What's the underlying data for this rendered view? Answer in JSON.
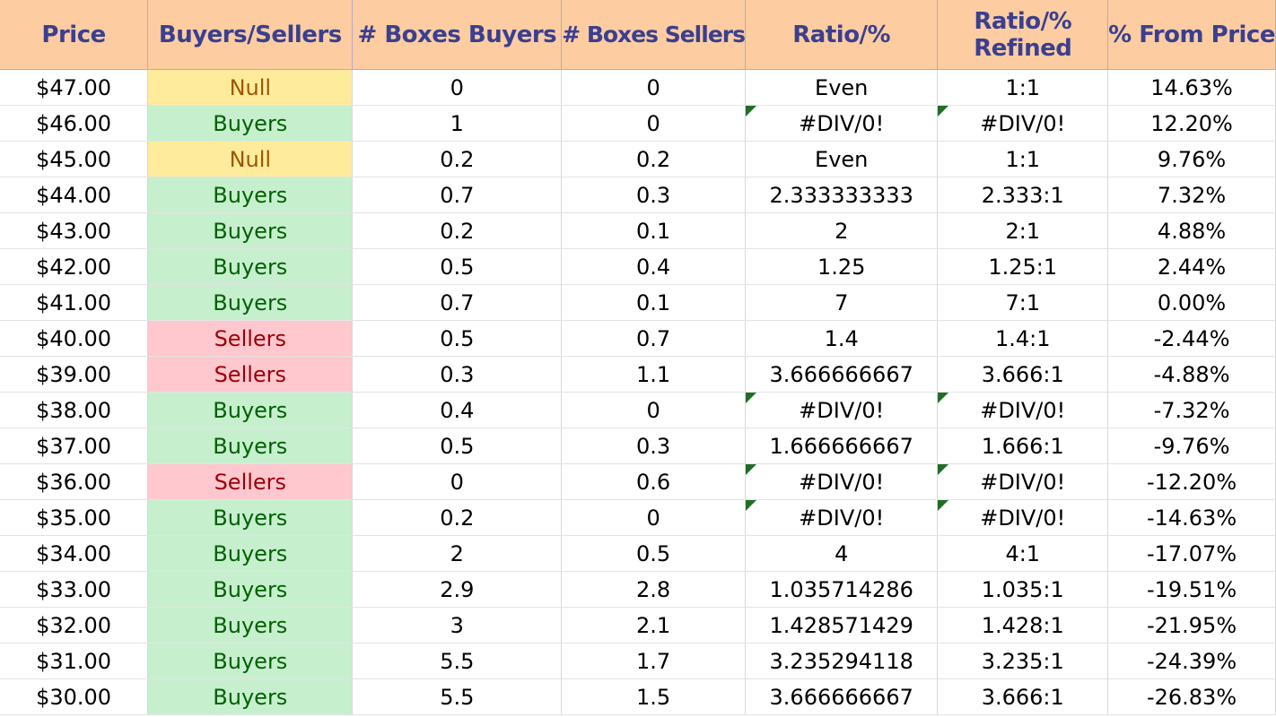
{
  "headers": [
    "Price",
    "Buyers/Sellers",
    "# Boxes Buyers",
    "# Boxes Sellers",
    "Ratio/%",
    "Ratio/% Refined",
    "% From Price"
  ],
  "header_refined_line1": "Ratio/%",
  "header_refined_line2": "Refined",
  "status_colors": {
    "Buyers": {
      "bg": "#c6efce",
      "fg": "#006100"
    },
    "Sellers": {
      "bg": "#ffc7ce",
      "fg": "#9c0006"
    },
    "Null": {
      "bg": "#ffeb9c",
      "fg": "#9c5700"
    }
  },
  "header_colors": {
    "bg": "#fdcca1",
    "fg": "#3a3f8f"
  },
  "rows": [
    {
      "price": "$47.00",
      "status": "Null",
      "buyers": "0",
      "sellers": "0",
      "ratio": "Even",
      "refined": "1:1",
      "from_price": "14.63%",
      "error_flag": false
    },
    {
      "price": "$46.00",
      "status": "Buyers",
      "buyers": "1",
      "sellers": "0",
      "ratio": "#DIV/0!",
      "refined": "#DIV/0!",
      "from_price": "12.20%",
      "error_flag": true
    },
    {
      "price": "$45.00",
      "status": "Null",
      "buyers": "0.2",
      "sellers": "0.2",
      "ratio": "Even",
      "refined": "1:1",
      "from_price": "9.76%",
      "error_flag": false
    },
    {
      "price": "$44.00",
      "status": "Buyers",
      "buyers": "0.7",
      "sellers": "0.3",
      "ratio": "2.333333333",
      "refined": "2.333:1",
      "from_price": "7.32%",
      "error_flag": false
    },
    {
      "price": "$43.00",
      "status": "Buyers",
      "buyers": "0.2",
      "sellers": "0.1",
      "ratio": "2",
      "refined": "2:1",
      "from_price": "4.88%",
      "error_flag": false
    },
    {
      "price": "$42.00",
      "status": "Buyers",
      "buyers": "0.5",
      "sellers": "0.4",
      "ratio": "1.25",
      "refined": "1.25:1",
      "from_price": "2.44%",
      "error_flag": false
    },
    {
      "price": "$41.00",
      "status": "Buyers",
      "buyers": "0.7",
      "sellers": "0.1",
      "ratio": "7",
      "refined": "7:1",
      "from_price": "0.00%",
      "error_flag": false
    },
    {
      "price": "$40.00",
      "status": "Sellers",
      "buyers": "0.5",
      "sellers": "0.7",
      "ratio": "1.4",
      "refined": "1.4:1",
      "from_price": "-2.44%",
      "error_flag": false
    },
    {
      "price": "$39.00",
      "status": "Sellers",
      "buyers": "0.3",
      "sellers": "1.1",
      "ratio": "3.666666667",
      "refined": "3.666:1",
      "from_price": "-4.88%",
      "error_flag": false
    },
    {
      "price": "$38.00",
      "status": "Buyers",
      "buyers": "0.4",
      "sellers": "0",
      "ratio": "#DIV/0!",
      "refined": "#DIV/0!",
      "from_price": "-7.32%",
      "error_flag": true
    },
    {
      "price": "$37.00",
      "status": "Buyers",
      "buyers": "0.5",
      "sellers": "0.3",
      "ratio": "1.666666667",
      "refined": "1.666:1",
      "from_price": "-9.76%",
      "error_flag": false
    },
    {
      "price": "$36.00",
      "status": "Sellers",
      "buyers": "0",
      "sellers": "0.6",
      "ratio": "#DIV/0!",
      "refined": "#DIV/0!",
      "from_price": "-12.20%",
      "error_flag": true
    },
    {
      "price": "$35.00",
      "status": "Buyers",
      "buyers": "0.2",
      "sellers": "0",
      "ratio": "#DIV/0!",
      "refined": "#DIV/0!",
      "from_price": "-14.63%",
      "error_flag": true
    },
    {
      "price": "$34.00",
      "status": "Buyers",
      "buyers": "2",
      "sellers": "0.5",
      "ratio": "4",
      "refined": "4:1",
      "from_price": "-17.07%",
      "error_flag": false
    },
    {
      "price": "$33.00",
      "status": "Buyers",
      "buyers": "2.9",
      "sellers": "2.8",
      "ratio": "1.035714286",
      "refined": "1.035:1",
      "from_price": "-19.51%",
      "error_flag": false
    },
    {
      "price": "$32.00",
      "status": "Buyers",
      "buyers": "3",
      "sellers": "2.1",
      "ratio": "1.428571429",
      "refined": "1.428:1",
      "from_price": "-21.95%",
      "error_flag": false
    },
    {
      "price": "$31.00",
      "status": "Buyers",
      "buyers": "5.5",
      "sellers": "1.7",
      "ratio": "3.235294118",
      "refined": "3.235:1",
      "from_price": "-24.39%",
      "error_flag": false
    },
    {
      "price": "$30.00",
      "status": "Buyers",
      "buyers": "5.5",
      "sellers": "1.5",
      "ratio": "3.666666667",
      "refined": "3.666:1",
      "from_price": "-26.83%",
      "error_flag": false
    }
  ]
}
